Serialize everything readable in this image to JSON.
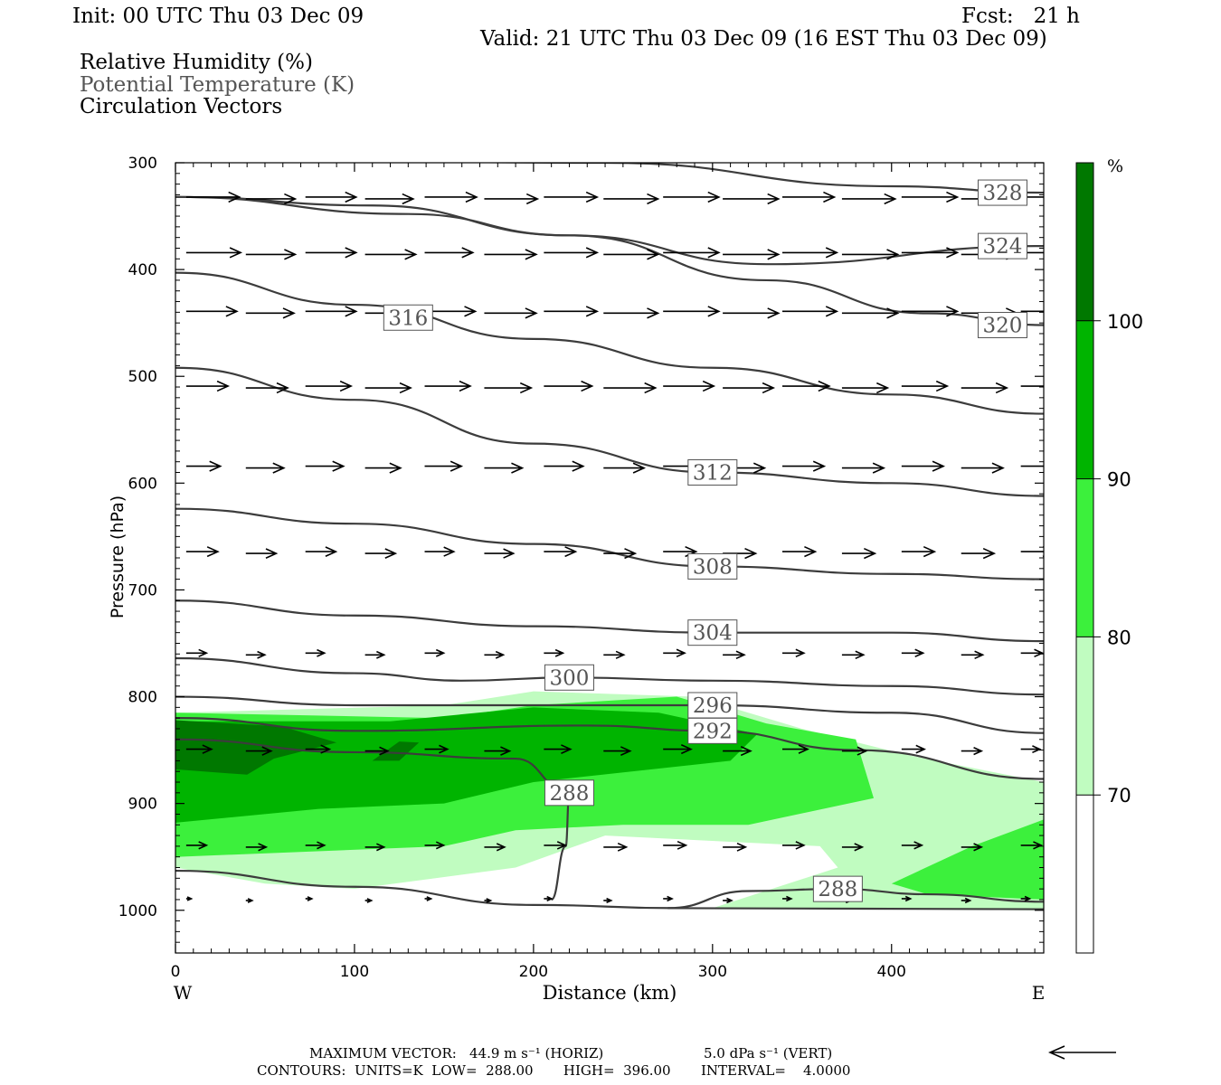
{
  "header": {
    "init": "Init: 00 UTC Thu 03 Dec 09",
    "fcst": "Fcst:   21 h",
    "valid": "Valid: 21 UTC Thu 03 Dec 09 (16 EST Thu 03 Dec 09)"
  },
  "fields": {
    "rh": "Relative Humidity (%)",
    "theta": "Potential Temperature (K)",
    "vectors": "Circulation Vectors"
  },
  "footer": {
    "max_vector_label": "MAXIMUM VECTOR:",
    "max_vector_horiz": "44.9 m s⁻¹ (HORIZ)",
    "max_vector_vert": "5.0 dPa s⁻¹ (VERT)",
    "contours": "CONTOURS:  UNITS=K  LOW=  288.00       HIGH=  396.00       INTERVAL=    4.0000"
  },
  "colorbar": {
    "unit": "%",
    "labels": [
      "70",
      "80",
      "90",
      "100"
    ],
    "colors": [
      "#ffffff",
      "#c0fcc0",
      "#3cf03c",
      "#00b400",
      "#007800"
    ]
  },
  "chart_data": {
    "type": "cross-section",
    "xlabel": "Distance (km)",
    "ylabel": "Pressure (hPa)",
    "xlim": [
      0,
      485
    ],
    "ylim": [
      1040,
      300
    ],
    "x_ticks": [
      "0",
      "100",
      "200",
      "300",
      "400"
    ],
    "y_ticks": [
      "300",
      "400",
      "500",
      "600",
      "700",
      "800",
      "900",
      "1000"
    ],
    "x_end_labels": {
      "west": "W",
      "east": "E"
    },
    "shading": "relative humidity (%)",
    "contour_field": "potential temperature (K)",
    "contours": [
      {
        "level": 328,
        "label": "328",
        "points": [
          [
            0,
            297
          ],
          [
            240,
            300
          ],
          [
            400,
            322
          ],
          [
            485,
            328
          ]
        ]
      },
      {
        "level": 324,
        "label": "324",
        "points": [
          [
            0,
            332
          ],
          [
            110,
            340
          ],
          [
            220,
            368
          ],
          [
            330,
            395
          ],
          [
            485,
            378
          ]
        ]
      },
      {
        "level": 320,
        "label": "320",
        "points": [
          [
            0,
            332
          ],
          [
            130,
            348
          ],
          [
            220,
            368
          ],
          [
            330,
            410
          ],
          [
            420,
            441
          ],
          [
            485,
            452
          ]
        ]
      },
      {
        "level": 316,
        "label": "316",
        "points": [
          [
            0,
            403
          ],
          [
            100,
            433
          ],
          [
            200,
            465
          ],
          [
            300,
            492
          ],
          [
            400,
            517
          ],
          [
            485,
            535
          ]
        ]
      },
      {
        "level": 312,
        "label": "312",
        "points": [
          [
            0,
            492
          ],
          [
            100,
            522
          ],
          [
            200,
            563
          ],
          [
            300,
            590
          ],
          [
            400,
            600
          ],
          [
            485,
            612
          ]
        ]
      },
      {
        "level": 308,
        "label": "308",
        "points": [
          [
            0,
            624
          ],
          [
            100,
            638
          ],
          [
            200,
            657
          ],
          [
            300,
            678
          ],
          [
            400,
            685
          ],
          [
            485,
            690
          ]
        ]
      },
      {
        "level": 304,
        "label": "304",
        "points": [
          [
            0,
            710
          ],
          [
            100,
            724
          ],
          [
            200,
            734
          ],
          [
            300,
            740
          ],
          [
            400,
            740
          ],
          [
            485,
            748
          ]
        ]
      },
      {
        "level": 300,
        "label": "300",
        "points": [
          [
            0,
            764
          ],
          [
            100,
            778
          ],
          [
            160,
            785
          ],
          [
            220,
            782
          ],
          [
            300,
            785
          ],
          [
            400,
            790
          ],
          [
            485,
            798
          ]
        ]
      },
      {
        "level": 296,
        "label": "296",
        "points": [
          [
            0,
            800
          ],
          [
            100,
            808
          ],
          [
            200,
            808
          ],
          [
            300,
            808
          ],
          [
            400,
            815
          ],
          [
            485,
            834
          ]
        ]
      },
      {
        "level": 292,
        "label": "292",
        "points": [
          [
            0,
            820
          ],
          [
            100,
            832
          ],
          [
            230,
            827
          ],
          [
            300,
            832
          ],
          [
            380,
            850
          ],
          [
            485,
            877
          ]
        ]
      },
      {
        "level": 288,
        "label": "288",
        "points": [
          [
            0,
            840
          ],
          [
            100,
            852
          ],
          [
            190,
            858
          ],
          [
            220,
            890
          ],
          [
            218,
            940
          ],
          [
            210,
            990
          ]
        ]
      },
      {
        "level": 288,
        "label": "288",
        "points": [
          [
            275,
            998
          ],
          [
            320,
            982
          ],
          [
            370,
            980
          ],
          [
            420,
            985
          ],
          [
            485,
            992
          ]
        ]
      },
      {
        "level": 288,
        "label": "",
        "points": [
          [
            0,
            963
          ],
          [
            100,
            978
          ],
          [
            200,
            995
          ],
          [
            280,
            998
          ],
          [
            485,
            999
          ]
        ]
      }
    ],
    "humidity_regions": [
      {
        "range": "70-80",
        "polygon": [
          [
            0,
            815
          ],
          [
            150,
            808
          ],
          [
            200,
            795
          ],
          [
            290,
            800
          ],
          [
            350,
            830
          ],
          [
            410,
            855
          ],
          [
            485,
            880
          ],
          [
            485,
            1000
          ],
          [
            300,
            998
          ],
          [
            370,
            960
          ],
          [
            360,
            940
          ],
          [
            240,
            930
          ],
          [
            190,
            960
          ],
          [
            100,
            980
          ],
          [
            50,
            975
          ],
          [
            0,
            960
          ]
        ]
      },
      {
        "range": "80-90",
        "polygon": [
          [
            0,
            815
          ],
          [
            150,
            820
          ],
          [
            200,
            808
          ],
          [
            280,
            800
          ],
          [
            330,
            825
          ],
          [
            380,
            840
          ],
          [
            390,
            895
          ],
          [
            320,
            920
          ],
          [
            250,
            920
          ],
          [
            190,
            925
          ],
          [
            150,
            940
          ],
          [
            0,
            950
          ]
        ]
      },
      {
        "range": "80-90",
        "polygon": [
          [
            485,
            915
          ],
          [
            485,
            990
          ],
          [
            420,
            985
          ],
          [
            400,
            975
          ],
          [
            445,
            940
          ]
        ]
      },
      {
        "range": "90-100",
        "polygon": [
          [
            0,
            823
          ],
          [
            120,
            823
          ],
          [
            200,
            810
          ],
          [
            270,
            815
          ],
          [
            325,
            835
          ],
          [
            310,
            860
          ],
          [
            200,
            880
          ],
          [
            150,
            900
          ],
          [
            80,
            905
          ],
          [
            0,
            918
          ]
        ]
      },
      {
        "range": ">100",
        "polygon": [
          [
            0,
            822
          ],
          [
            60,
            828
          ],
          [
            90,
            843
          ],
          [
            55,
            858
          ],
          [
            40,
            873
          ],
          [
            0,
            868
          ]
        ]
      },
      {
        "range": ">100",
        "polygon": [
          [
            110,
            860
          ],
          [
            125,
            842
          ],
          [
            136,
            843
          ],
          [
            125,
            860
          ]
        ]
      }
    ],
    "vector_rows": [
      {
        "pressure": 333,
        "u": [
          4.2,
          3.9,
          4.0,
          3.8,
          4.1,
          4.2,
          4.2,
          4.3,
          4.4,
          4.4,
          4.1,
          4.2,
          4.4,
          4.4,
          4.4
        ]
      },
      {
        "pressure": 385,
        "u": [
          4.3,
          3.9,
          4.0,
          4.0,
          3.8,
          4.1,
          4.2,
          4.3,
          4.4,
          4.4,
          4.3,
          4.4,
          4.4,
          4.4,
          4.4
        ]
      },
      {
        "pressure": 440,
        "u": [
          4.0,
          3.8,
          4.0,
          3.7,
          4.0,
          4.1,
          4.2,
          4.3,
          4.4,
          4.4,
          4.3,
          4.4,
          4.4,
          4.4,
          4.4
        ]
      },
      {
        "pressure": 510,
        "u": [
          3.3,
          3.3,
          3.6,
          3.6,
          3.6,
          3.7,
          3.8,
          4.1,
          4.0,
          4.0,
          3.7,
          3.6,
          3.6,
          3.6,
          3.6
        ]
      },
      {
        "pressure": 585,
        "u": [
          2.7,
          3.0,
          3.0,
          2.8,
          2.9,
          3.0,
          3.1,
          3.2,
          3.3,
          3.3,
          3.3,
          3.3,
          3.3,
          3.3,
          3.3
        ]
      },
      {
        "pressure": 665,
        "u": [
          2.5,
          2.4,
          2.4,
          2.4,
          2.3,
          2.3,
          2.5,
          2.5,
          2.6,
          2.6,
          2.6,
          2.6,
          2.6,
          2.6,
          2.6
        ]
      },
      {
        "pressure": 760,
        "u": [
          1.6,
          1.5,
          1.5,
          1.5,
          1.5,
          1.5,
          1.5,
          1.6,
          1.7,
          1.7,
          1.7,
          1.7,
          1.7,
          1.7,
          1.7
        ]
      },
      {
        "pressure": 850,
        "u": [
          2.0,
          2.0,
          1.9,
          1.8,
          1.8,
          2.0,
          2.1,
          2.1,
          2.2,
          2.2,
          2.0,
          1.9,
          1.8,
          1.6,
          1.5
        ]
      },
      {
        "pressure": 940,
        "u": [
          1.6,
          1.6,
          1.5,
          1.5,
          1.5,
          1.6,
          1.7,
          1.8,
          1.8,
          1.8,
          1.7,
          1.6,
          1.6,
          1.6,
          1.6
        ]
      },
      {
        "pressure": 990,
        "u": [
          0.4,
          0.5,
          0.5,
          0.5,
          0.5,
          0.5,
          0.6,
          0.6,
          0.7,
          0.7,
          0.7,
          0.7,
          0.7,
          0.7,
          0.7
        ]
      }
    ]
  }
}
